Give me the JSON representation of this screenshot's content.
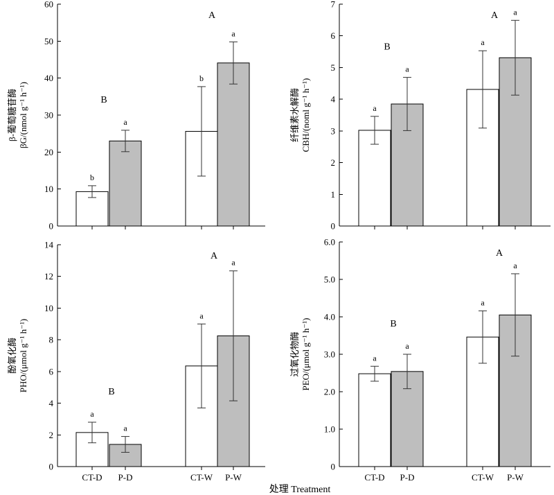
{
  "figure": {
    "xlabel": "处理 Treatment",
    "categories": [
      "CT-D",
      "P-D",
      "CT-W",
      "P-W"
    ],
    "colors": {
      "CT": "#ffffff",
      "P": "#bebebe",
      "stroke": "#000000"
    }
  },
  "chart_data": [
    {
      "type": "bar",
      "panel": "top-left",
      "ylabel_line1": "β-葡萄糖苷酶",
      "ylabel_line2": "βG/(nmol g⁻¹ h⁻¹)",
      "ylim": [
        0,
        60
      ],
      "yticks": [
        0,
        10,
        20,
        30,
        40,
        50,
        60
      ],
      "tick_labels": [
        "0",
        "10",
        "20",
        "30",
        "40",
        "50",
        "60"
      ],
      "categories": [
        "CT-D",
        "P-D",
        "CT-W",
        "P-W"
      ],
      "values": [
        9.3,
        23.0,
        25.6,
        44.1
      ],
      "errors": [
        1.6,
        2.9,
        12.1,
        5.7
      ],
      "letters": [
        "b",
        "a",
        "b",
        "a"
      ],
      "group_letters": [
        "B",
        "A"
      ],
      "grid": false
    },
    {
      "type": "bar",
      "panel": "top-right",
      "ylabel_line1": "纤维素水解酶",
      "ylabel_line2": "CBH/(noml g⁻¹ h⁻¹)",
      "ylim": [
        0,
        7
      ],
      "yticks": [
        0,
        1,
        2,
        3,
        4,
        5,
        6,
        7
      ],
      "tick_labels": [
        "0",
        "1",
        "2",
        "3",
        "4",
        "5",
        "6",
        "7"
      ],
      "categories": [
        "CT-D",
        "P-D",
        "CT-W",
        "P-W"
      ],
      "values": [
        3.02,
        3.85,
        4.31,
        5.31
      ],
      "errors": [
        0.44,
        0.84,
        1.22,
        1.18
      ],
      "letters": [
        "a",
        "a",
        "a",
        "a"
      ],
      "group_letters": [
        "B",
        "A"
      ],
      "grid": false
    },
    {
      "type": "bar",
      "panel": "bottom-left",
      "ylabel_line1": "酚氧化酶",
      "ylabel_line2": "PHO/(μmol g⁻¹ h⁻¹)",
      "ylim": [
        0,
        14
      ],
      "yticks": [
        0,
        2,
        4,
        6,
        8,
        10,
        12,
        14
      ],
      "tick_labels": [
        "0",
        "2",
        "4",
        "6",
        "8",
        "10",
        "12",
        "14"
      ],
      "categories": [
        "CT-D",
        "P-D",
        "CT-W",
        "P-W"
      ],
      "values": [
        2.15,
        1.4,
        6.35,
        8.25
      ],
      "errors": [
        0.65,
        0.5,
        2.65,
        4.1
      ],
      "letters": [
        "a",
        "a",
        "a",
        "a"
      ],
      "group_letters": [
        "B",
        "A"
      ],
      "grid": false
    },
    {
      "type": "bar",
      "panel": "bottom-right",
      "ylabel_line1": "过氧化物酶",
      "ylabel_line2": "PEO/(μmol g⁻¹ h⁻¹)",
      "ylim": [
        0,
        6
      ],
      "yticks": [
        0,
        1,
        2,
        3,
        4,
        5,
        6
      ],
      "tick_labels": [
        "0",
        "1.0",
        "2.0",
        "3.0",
        "4.0",
        "5.0",
        "6.0"
      ],
      "categories": [
        "CT-D",
        "P-D",
        "CT-W",
        "P-W"
      ],
      "values": [
        2.48,
        2.54,
        3.46,
        4.05
      ],
      "errors": [
        0.2,
        0.46,
        0.7,
        1.1
      ],
      "letters": [
        "a",
        "a",
        "a",
        "a"
      ],
      "group_letters": [
        "B",
        "A"
      ],
      "grid": false
    }
  ]
}
